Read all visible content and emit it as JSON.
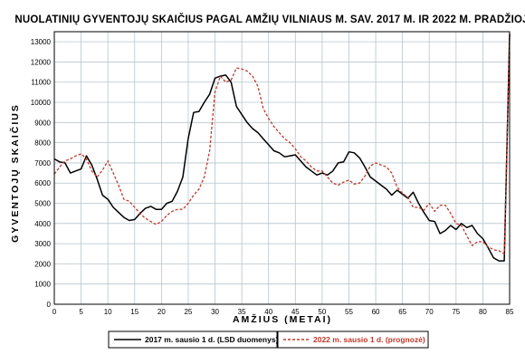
{
  "chart_data": {
    "type": "line",
    "title": "NUOLATINIŲ GYVENTOJŲ SKAIČIUS PAGAL AMŽIŲ VILNIAUS M. SAV. 2017 M. IR 2022 M. PRADŽIOJE",
    "xlabel": "AMŽIUS (METAI)",
    "ylabel": "GYVENTOJŲ SKAIČIUS",
    "xlim": [
      0,
      85
    ],
    "ylim": [
      0,
      13500
    ],
    "x_ticks": [
      0,
      5,
      10,
      15,
      20,
      25,
      30,
      35,
      40,
      45,
      50,
      55,
      60,
      65,
      70,
      75,
      80,
      85
    ],
    "y_ticks": [
      0,
      1000,
      2000,
      3000,
      4000,
      5000,
      6000,
      7000,
      8000,
      9000,
      10000,
      11000,
      12000,
      13000
    ],
    "grid": true,
    "legend": "bottom",
    "series": [
      {
        "name": "2017 m. sausio 1 d. (LSD duomenys)",
        "color": "#000000",
        "style": "solid",
        "x": [
          0,
          1,
          2,
          3,
          4,
          5,
          6,
          7,
          8,
          9,
          10,
          11,
          12,
          13,
          14,
          15,
          16,
          17,
          18,
          19,
          20,
          21,
          22,
          23,
          24,
          25,
          26,
          27,
          28,
          29,
          30,
          31,
          32,
          33,
          34,
          35,
          36,
          37,
          38,
          39,
          40,
          41,
          42,
          43,
          44,
          45,
          46,
          47,
          48,
          49,
          50,
          51,
          52,
          53,
          54,
          55,
          56,
          57,
          58,
          59,
          60,
          61,
          62,
          63,
          64,
          65,
          66,
          67,
          68,
          69,
          70,
          71,
          72,
          73,
          74,
          75,
          76,
          77,
          78,
          79,
          80,
          81,
          82,
          83,
          84,
          85
        ],
        "values": [
          7200,
          7050,
          7000,
          6500,
          6600,
          6700,
          7350,
          6900,
          6200,
          5400,
          5200,
          4800,
          4550,
          4300,
          4150,
          4200,
          4500,
          4750,
          4850,
          4700,
          4700,
          5000,
          5100,
          5600,
          6300,
          8200,
          9500,
          9550,
          10000,
          10400,
          11200,
          11300,
          11350,
          11000,
          9800,
          9400,
          9000,
          8700,
          8500,
          8200,
          7900,
          7600,
          7500,
          7300,
          7350,
          7400,
          7100,
          6800,
          6600,
          6400,
          6500,
          6400,
          6600,
          7000,
          7050,
          7550,
          7500,
          7250,
          6800,
          6300,
          6100,
          5900,
          5700,
          5400,
          5650,
          5450,
          5250,
          5550,
          5000,
          4550,
          4150,
          4100,
          3500,
          3650,
          3900,
          3700,
          4000,
          3800,
          3900,
          3500,
          3250,
          2800,
          2300,
          2150,
          2150,
          13400
        ]
      },
      {
        "name": "2022 m. sausio 1 d. (prognozė)",
        "color": "#c0392b",
        "style": "dashed",
        "x": [
          0,
          1,
          2,
          3,
          4,
          5,
          6,
          7,
          8,
          9,
          10,
          11,
          12,
          13,
          14,
          15,
          16,
          17,
          18,
          19,
          20,
          21,
          22,
          23,
          24,
          25,
          26,
          27,
          28,
          29,
          30,
          31,
          32,
          33,
          34,
          35,
          36,
          37,
          38,
          39,
          40,
          41,
          42,
          43,
          44,
          45,
          46,
          47,
          48,
          49,
          50,
          51,
          52,
          53,
          54,
          55,
          56,
          57,
          58,
          59,
          60,
          61,
          62,
          63,
          64,
          65,
          66,
          67,
          68,
          69,
          70,
          71,
          72,
          73,
          74,
          75,
          76,
          77,
          78,
          79,
          80,
          81,
          82,
          83,
          84,
          85
        ],
        "values": [
          6450,
          6800,
          7100,
          7200,
          7350,
          7450,
          7200,
          6600,
          6300,
          6650,
          7100,
          6500,
          5900,
          5200,
          5100,
          4800,
          4500,
          4250,
          4100,
          3950,
          4100,
          4400,
          4600,
          4700,
          4700,
          5000,
          5400,
          5700,
          6300,
          7600,
          10500,
          11300,
          11000,
          11100,
          11700,
          11650,
          11550,
          11300,
          10800,
          9700,
          9200,
          8800,
          8500,
          8200,
          8000,
          7700,
          7300,
          7100,
          6800,
          6600,
          6600,
          6300,
          6000,
          5900,
          6050,
          6150,
          5950,
          6000,
          6350,
          6850,
          7000,
          6900,
          6800,
          6500,
          5800,
          5500,
          5300,
          4800,
          4800,
          4650,
          5000,
          4600,
          4900,
          4900,
          4500,
          4000,
          3900,
          3400,
          2900,
          3100,
          3100,
          2850,
          2700,
          2650,
          2500,
          13300
        ]
      }
    ]
  },
  "colors": {
    "grid": "#b7c4cc",
    "plot_border": "#000000",
    "line_2017": "#000000",
    "line_2022": "#c0392b"
  }
}
